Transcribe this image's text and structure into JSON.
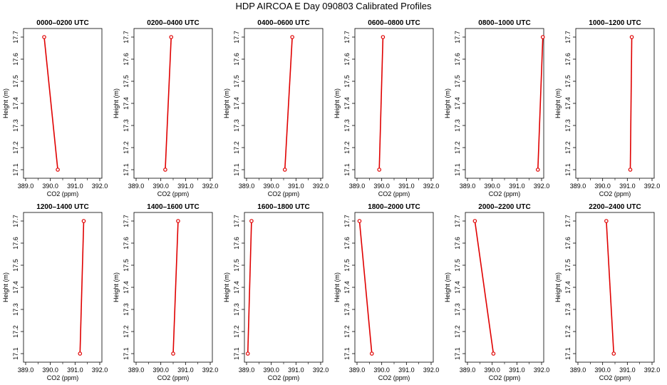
{
  "figure": {
    "title": "HDP AIRCOA E  Day 090803  Calibrated Profiles"
  },
  "colors": {
    "line": "#e00000",
    "marker": "#e00000",
    "frame": "#000000"
  },
  "chart_data": [
    {
      "type": "line",
      "title": "0000–0200 UTC",
      "xlabel": "CO2 (ppm)",
      "ylabel": "Height (m)",
      "xlim": [
        389.0,
        392.0
      ],
      "ylim": [
        17.1,
        17.7
      ],
      "xticks": [
        "389.0",
        "390.0",
        "391.0",
        "392.0"
      ],
      "yticks": [
        "17.1",
        "17.2",
        "17.3",
        "17.4",
        "17.5",
        "17.6",
        "17.7"
      ],
      "x": [
        390.3,
        389.75
      ],
      "y": [
        17.1,
        17.7
      ]
    },
    {
      "type": "line",
      "title": "0200–0400 UTC",
      "xlabel": "CO2 (ppm)",
      "ylabel": "Height (m)",
      "xlim": [
        389.0,
        392.0
      ],
      "ylim": [
        17.1,
        17.7
      ],
      "xticks": [
        "389.0",
        "390.0",
        "391.0",
        "392.0"
      ],
      "yticks": [
        "17.1",
        "17.2",
        "17.3",
        "17.4",
        "17.5",
        "17.6",
        "17.7"
      ],
      "x": [
        390.18,
        390.42
      ],
      "y": [
        17.1,
        17.7
      ]
    },
    {
      "type": "line",
      "title": "0400–0600 UTC",
      "xlabel": "CO2 (ppm)",
      "ylabel": "Height (m)",
      "xlim": [
        389.0,
        392.0
      ],
      "ylim": [
        17.1,
        17.7
      ],
      "xticks": [
        "389.0",
        "390.0",
        "391.0",
        "392.0"
      ],
      "yticks": [
        "17.1",
        "17.2",
        "17.3",
        "17.4",
        "17.5",
        "17.6",
        "17.7"
      ],
      "x": [
        390.55,
        390.85
      ],
      "y": [
        17.1,
        17.7
      ]
    },
    {
      "type": "line",
      "title": "0600–0800 UTC",
      "xlabel": "CO2 (ppm)",
      "ylabel": "Height (m)",
      "xlim": [
        389.0,
        392.0
      ],
      "ylim": [
        17.1,
        17.7
      ],
      "xticks": [
        "389.0",
        "390.0",
        "391.0",
        "392.0"
      ],
      "yticks": [
        "17.1",
        "17.2",
        "17.3",
        "17.4",
        "17.5",
        "17.6",
        "17.7"
      ],
      "x": [
        389.9,
        390.05
      ],
      "y": [
        17.1,
        17.7
      ]
    },
    {
      "type": "line",
      "title": "0800–1000 UTC",
      "xlabel": "CO2 (ppm)",
      "ylabel": "Height (m)",
      "xlim": [
        389.0,
        392.0
      ],
      "ylim": [
        17.1,
        17.7
      ],
      "xticks": [
        "389.0",
        "390.0",
        "391.0",
        "392.0"
      ],
      "yticks": [
        "17.1",
        "17.2",
        "17.3",
        "17.4",
        "17.5",
        "17.6",
        "17.7"
      ],
      "x": [
        391.85,
        392.05
      ],
      "y": [
        17.1,
        17.7
      ]
    },
    {
      "type": "line",
      "title": "1000–1200 UTC",
      "xlabel": "CO2 (ppm)",
      "ylabel": "Height (m)",
      "xlim": [
        389.0,
        392.0
      ],
      "ylim": [
        17.1,
        17.7
      ],
      "xticks": [
        "389.0",
        "390.0",
        "391.0",
        "392.0"
      ],
      "yticks": [
        "17.1",
        "17.2",
        "17.3",
        "17.4",
        "17.5",
        "17.6",
        "17.7"
      ],
      "x": [
        391.12,
        391.18
      ],
      "y": [
        17.1,
        17.7
      ]
    },
    {
      "type": "line",
      "title": "1200–1400 UTC",
      "xlabel": "CO2 (ppm)",
      "ylabel": "Height (m)",
      "xlim": [
        389.0,
        392.0
      ],
      "ylim": [
        17.1,
        17.7
      ],
      "xticks": [
        "389.0",
        "390.0",
        "391.0",
        "392.0"
      ],
      "yticks": [
        "17.1",
        "17.2",
        "17.3",
        "17.4",
        "17.5",
        "17.6",
        "17.7"
      ],
      "x": [
        391.2,
        391.35
      ],
      "y": [
        17.1,
        17.7
      ]
    },
    {
      "type": "line",
      "title": "1400–1600 UTC",
      "xlabel": "CO2 (ppm)",
      "ylabel": "Height (m)",
      "xlim": [
        389.0,
        392.0
      ],
      "ylim": [
        17.1,
        17.7
      ],
      "xticks": [
        "389.0",
        "390.0",
        "391.0",
        "392.0"
      ],
      "yticks": [
        "17.1",
        "17.2",
        "17.3",
        "17.4",
        "17.5",
        "17.6",
        "17.7"
      ],
      "x": [
        390.5,
        390.7
      ],
      "y": [
        17.1,
        17.7
      ]
    },
    {
      "type": "line",
      "title": "1600–1800 UTC",
      "xlabel": "CO2 (ppm)",
      "ylabel": "Height (m)",
      "xlim": [
        389.0,
        392.0
      ],
      "ylim": [
        17.1,
        17.7
      ],
      "xticks": [
        "389.0",
        "390.0",
        "391.0",
        "392.0"
      ],
      "yticks": [
        "17.1",
        "17.2",
        "17.3",
        "17.4",
        "17.5",
        "17.6",
        "17.7"
      ],
      "x": [
        389.05,
        389.2
      ],
      "y": [
        17.1,
        17.7
      ]
    },
    {
      "type": "line",
      "title": "1800–2000 UTC",
      "xlabel": "CO2 (ppm)",
      "ylabel": "Height (m)",
      "xlim": [
        389.0,
        392.0
      ],
      "ylim": [
        17.1,
        17.7
      ],
      "xticks": [
        "389.0",
        "390.0",
        "391.0",
        "392.0"
      ],
      "yticks": [
        "17.1",
        "17.2",
        "17.3",
        "17.4",
        "17.5",
        "17.6",
        "17.7"
      ],
      "x": [
        389.6,
        389.1
      ],
      "y": [
        17.1,
        17.7
      ]
    },
    {
      "type": "line",
      "title": "2000–2200 UTC",
      "xlabel": "CO2 (ppm)",
      "ylabel": "Height (m)",
      "xlim": [
        389.0,
        392.0
      ],
      "ylim": [
        17.1,
        17.7
      ],
      "xticks": [
        "389.0",
        "390.0",
        "391.0",
        "392.0"
      ],
      "yticks": [
        "17.1",
        "17.2",
        "17.3",
        "17.4",
        "17.5",
        "17.6",
        "17.7"
      ],
      "x": [
        390.05,
        389.3
      ],
      "y": [
        17.1,
        17.7
      ]
    },
    {
      "type": "line",
      "title": "2200–2400 UTC",
      "xlabel": "CO2 (ppm)",
      "ylabel": "Height (m)",
      "xlim": [
        389.0,
        392.0
      ],
      "ylim": [
        17.1,
        17.7
      ],
      "xticks": [
        "389.0",
        "390.0",
        "391.0",
        "392.0"
      ],
      "yticks": [
        "17.1",
        "17.2",
        "17.3",
        "17.4",
        "17.5",
        "17.6",
        "17.7"
      ],
      "x": [
        390.45,
        390.15
      ],
      "y": [
        17.1,
        17.7
      ]
    }
  ]
}
